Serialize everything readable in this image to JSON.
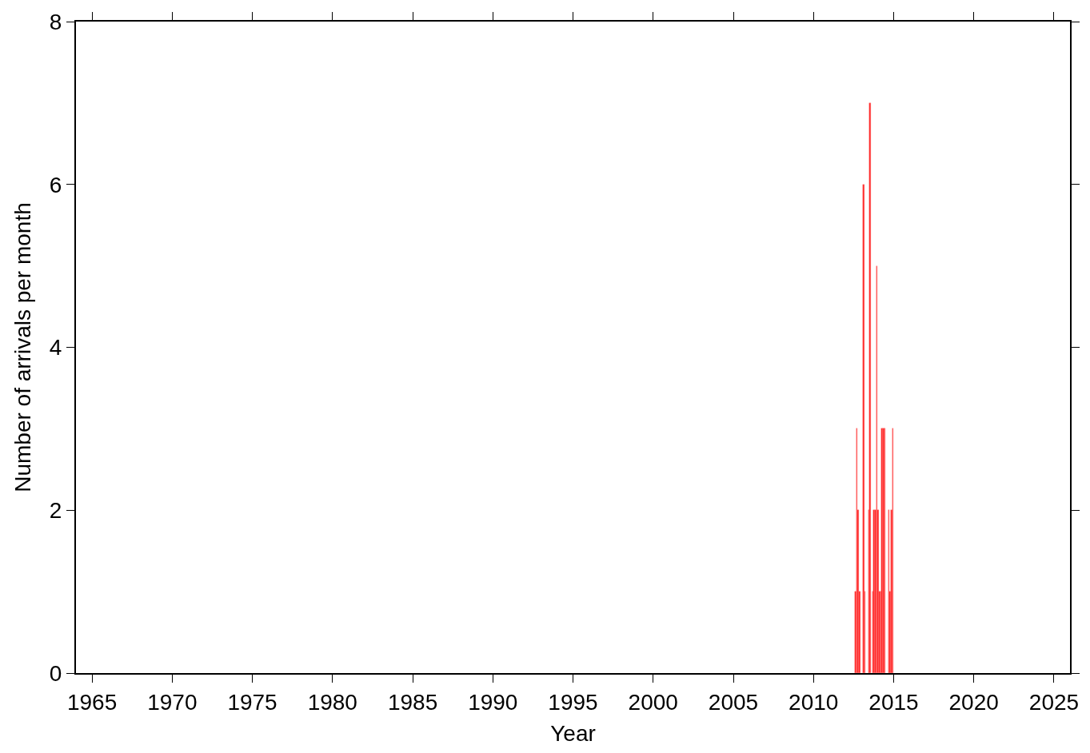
{
  "chart_data": {
    "type": "bar",
    "xlabel": "Year",
    "ylabel": "Number of arrivals per month",
    "x": [
      "2012-08",
      "2012-09",
      "2012-10",
      "2012-11",
      "2013-02",
      "2013-03",
      "2013-06",
      "2013-07",
      "2013-09",
      "2013-10",
      "2013-11",
      "2013-12",
      "2014-01",
      "2014-02",
      "2014-03",
      "2014-04",
      "2014-05",
      "2014-06",
      "2014-09",
      "2014-10",
      "2014-11",
      "2014-12"
    ],
    "values": [
      1,
      3,
      2,
      1,
      6,
      1,
      2,
      7,
      1,
      2,
      2,
      5,
      2,
      1,
      1,
      3,
      3,
      3,
      2,
      1,
      2,
      3
    ],
    "color": "#ff2020",
    "xlim": [
      "1964",
      "2026"
    ],
    "xticks": [
      "1965",
      "1970",
      "1975",
      "1980",
      "1985",
      "1990",
      "1995",
      "2000",
      "2005",
      "2010",
      "2015",
      "2020",
      "2025"
    ],
    "ylim": [
      0,
      8
    ],
    "yticks": [
      0,
      2,
      4,
      6,
      8
    ]
  }
}
